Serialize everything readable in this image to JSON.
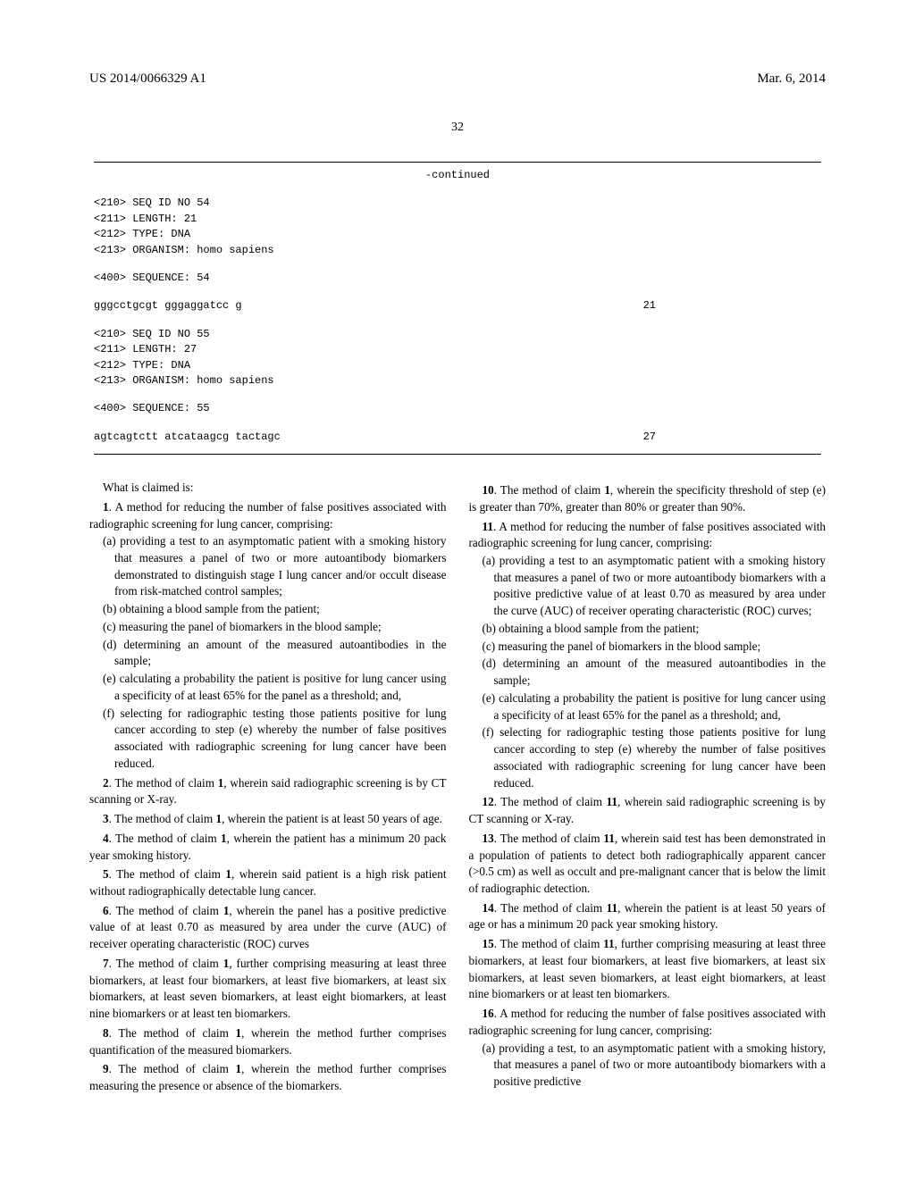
{
  "header": {
    "docNumber": "US 2014/0066329 A1",
    "date": "Mar. 6, 2014"
  },
  "pageNumber": "32",
  "sequence": {
    "continued": "-continued",
    "entries": [
      {
        "lines": [
          "<210> SEQ ID NO 54",
          "<211> LENGTH: 21",
          "<212> TYPE: DNA",
          "<213> ORGANISM: homo sapiens"
        ]
      },
      {
        "lines": [
          "<400> SEQUENCE: 54"
        ]
      },
      {
        "seqData": "gggcctgcgt gggaggatcc g",
        "seqNum": "21"
      },
      {
        "lines": [
          "<210> SEQ ID NO 55",
          "<211> LENGTH: 27",
          "<212> TYPE: DNA",
          "<213> ORGANISM: homo sapiens"
        ]
      },
      {
        "lines": [
          "<400> SEQUENCE: 55"
        ]
      },
      {
        "seqData": "agtcagtctt atcataagcg tactagc",
        "seqNum": "27"
      }
    ]
  },
  "leftColumn": {
    "whatClaimed": "What is claimed is:",
    "claims": [
      {
        "num": "1",
        "intro": ". A method for reducing the number of false positives associated with radiographic screening for lung cancer, comprising:",
        "subs": [
          "(a) providing a test to an asymptomatic patient with a smoking history that measures a panel of two or more autoantibody biomarkers demonstrated to distinguish stage I lung cancer and/or occult disease from risk-matched control samples;",
          "(b) obtaining a blood sample from the patient;",
          "(c) measuring the panel of biomarkers in the blood sample;",
          "(d) determining an amount of the measured autoantibodies in the sample;",
          "(e) calculating a probability the patient is positive for lung cancer using a specificity of at least 65% for the panel as a threshold; and,",
          "(f) selecting for radiographic testing those patients positive for lung cancer according to step (e) whereby the number of false positives associated with radiographic screening for lung cancer have been reduced."
        ]
      },
      {
        "num": "2",
        "textA": ". The method of claim ",
        "ref": "1",
        "textB": ", wherein said radiographic screening is by CT scanning or X-ray."
      },
      {
        "num": "3",
        "textA": ". The method of claim ",
        "ref": "1",
        "textB": ", wherein the patient is at least 50 years of age."
      },
      {
        "num": "4",
        "textA": ". The method of claim ",
        "ref": "1",
        "textB": ", wherein the patient has a minimum 20 pack year smoking history."
      },
      {
        "num": "5",
        "textA": ". The method of claim ",
        "ref": "1",
        "textB": ", wherein said patient is a high risk patient without radiographically detectable lung cancer."
      },
      {
        "num": "6",
        "textA": ". The method of claim ",
        "ref": "1",
        "textB": ", wherein the panel has a positive predictive value of at least 0.70 as measured by area under the curve (AUC) of receiver operating characteristic (ROC) curves"
      },
      {
        "num": "7",
        "textA": ". The method of claim ",
        "ref": "1",
        "textB": ", further comprising measuring at least three biomarkers, at least four biomarkers, at least five biomarkers, at least six biomarkers, at least seven biomarkers, at least eight biomarkers, at least nine biomarkers or at least ten biomarkers."
      },
      {
        "num": "8",
        "textA": ". The method of claim ",
        "ref": "1",
        "textB": ", wherein the method further comprises quantification of the measured biomarkers."
      },
      {
        "num": "9",
        "textA": ". The method of claim ",
        "ref": "1",
        "textB": ", wherein the method further comprises measuring the presence or absence of the biomarkers."
      }
    ]
  },
  "rightColumn": {
    "claims": [
      {
        "num": "10",
        "textA": ". The method of claim ",
        "ref": "1",
        "textB": ", wherein the specificity threshold of step (e) is greater than 70%, greater than 80% or greater than 90%."
      },
      {
        "num": "11",
        "intro": ". A method for reducing the number of false positives associated with radiographic screening for lung cancer, comprising:",
        "subs": [
          "(a) providing a test to an asymptomatic patient with a smoking history that measures a panel of two or more autoantibody biomarkers with a positive predictive value of at least 0.70 as measured by area under the curve (AUC) of receiver operating characteristic (ROC) curves;",
          "(b) obtaining a blood sample from the patient;",
          "(c) measuring the panel of biomarkers in the blood sample;",
          "(d) determining an amount of the measured autoantibodies in the sample;",
          "(e) calculating a probability the patient is positive for lung cancer using a specificity of at least 65% for the panel as a threshold; and,",
          "(f) selecting for radiographic testing those patients positive for lung cancer according to step (e) whereby the number of false positives associated with radiographic screening for lung cancer have been reduced."
        ]
      },
      {
        "num": "12",
        "textA": ". The method of claim ",
        "ref": "11",
        "textB": ", wherein said radiographic screening is by CT scanning or X-ray."
      },
      {
        "num": "13",
        "textA": ". The method of claim ",
        "ref": "11",
        "textB": ", wherein said test has been demonstrated in a population of patients to detect both radiographically apparent cancer (>0.5 cm) as well as occult and pre-malignant cancer that is below the limit of radiographic detection."
      },
      {
        "num": "14",
        "textA": ". The method of claim ",
        "ref": "11",
        "textB": ", wherein the patient is at least 50 years of age or has a minimum 20 pack year smoking history."
      },
      {
        "num": "15",
        "textA": ". The method of claim ",
        "ref": "11",
        "textB": ", further comprising measuring at least three biomarkers, at least four biomarkers, at least five biomarkers, at least six biomarkers, at least seven biomarkers, at least eight biomarkers, at least nine biomarkers or at least ten biomarkers."
      },
      {
        "num": "16",
        "intro": ". A method for reducing the number of false positives associated with radiographic screening for lung cancer, comprising:",
        "subs": [
          "(a) providing a test, to an asymptomatic patient with a smoking history, that measures a panel of two or more autoantibody biomarkers with a positive predictive"
        ]
      }
    ]
  }
}
